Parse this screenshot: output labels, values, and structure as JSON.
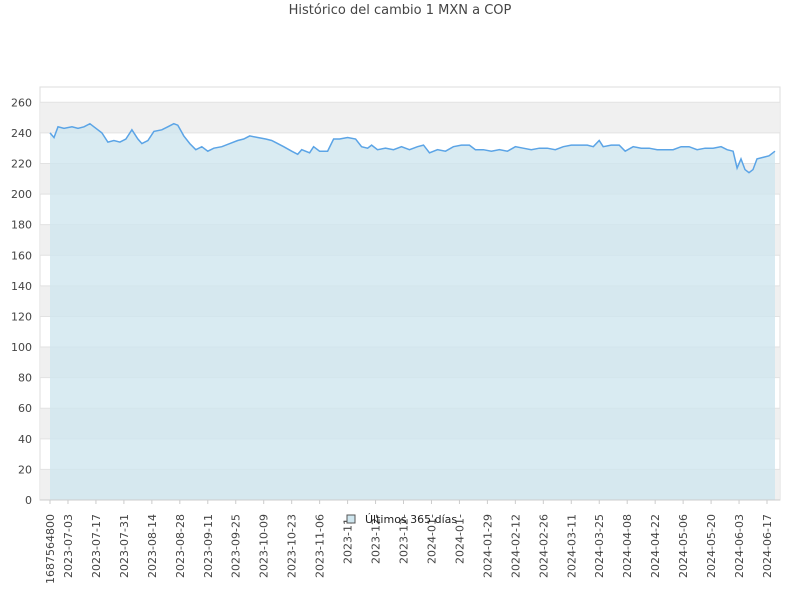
{
  "title": "Histórico del cambio 1 MXN a COP",
  "chart_data": {
    "type": "area",
    "title": "Histórico del cambio 1 MXN a COP",
    "xlabel": "",
    "ylabel": "",
    "ylim": [
      0,
      270
    ],
    "yticks": [
      0,
      20,
      40,
      60,
      80,
      100,
      120,
      140,
      160,
      180,
      200,
      220,
      240,
      260
    ],
    "grid": true,
    "legend_position": "bottom-center",
    "line_color": "#5ba4e6",
    "fill_color": "#cfe6ef",
    "x_tick_labels": [
      "1687564800",
      "2023-07-03",
      "2023-07-17",
      "2023-07-31",
      "2023-08-14",
      "2023-08-28",
      "2023-09-11",
      "2023-09-25",
      "2023-10-09",
      "2023-10-23",
      "2023-11-06",
      "2023-11-",
      "2023-12-",
      "2023-12-",
      "2024-01-",
      "2024-01-",
      "2024-01-29",
      "2024-02-12",
      "2024-02-26",
      "2024-03-11",
      "2024-03-25",
      "2024-04-08",
      "2024-04-22",
      "2024-05-06",
      "2024-05-20",
      "2024-06-03",
      "2024-06-17"
    ],
    "x_tick_dates": [
      "2023-06-24",
      "2023-07-03",
      "2023-07-17",
      "2023-07-31",
      "2023-08-14",
      "2023-08-28",
      "2023-09-11",
      "2023-09-25",
      "2023-10-09",
      "2023-10-23",
      "2023-11-06",
      "2023-11-20",
      "2023-12-04",
      "2023-12-18",
      "2024-01-01",
      "2024-01-15",
      "2024-01-29",
      "2024-02-12",
      "2024-02-26",
      "2024-03-11",
      "2024-03-25",
      "2024-04-08",
      "2024-04-22",
      "2024-05-06",
      "2024-05-20",
      "2024-06-03",
      "2024-06-17"
    ],
    "series": [
      {
        "name": "Últimos 365 días",
        "points": [
          [
            "2023-06-24",
            240
          ],
          [
            "2023-06-26",
            237
          ],
          [
            "2023-06-28",
            244
          ],
          [
            "2023-07-01",
            243
          ],
          [
            "2023-07-05",
            244
          ],
          [
            "2023-07-08",
            243
          ],
          [
            "2023-07-11",
            244
          ],
          [
            "2023-07-14",
            246
          ],
          [
            "2023-07-17",
            243
          ],
          [
            "2023-07-20",
            240
          ],
          [
            "2023-07-23",
            234
          ],
          [
            "2023-07-26",
            235
          ],
          [
            "2023-07-29",
            234
          ],
          [
            "2023-08-01",
            236
          ],
          [
            "2023-08-04",
            242
          ],
          [
            "2023-08-07",
            236
          ],
          [
            "2023-08-09",
            233
          ],
          [
            "2023-08-12",
            235
          ],
          [
            "2023-08-15",
            241
          ],
          [
            "2023-08-19",
            242
          ],
          [
            "2023-08-22",
            244
          ],
          [
            "2023-08-25",
            246
          ],
          [
            "2023-08-27",
            245
          ],
          [
            "2023-08-30",
            238
          ],
          [
            "2023-09-02",
            233
          ],
          [
            "2023-09-05",
            229
          ],
          [
            "2023-09-08",
            231
          ],
          [
            "2023-09-11",
            228
          ],
          [
            "2023-09-14",
            230
          ],
          [
            "2023-09-18",
            231
          ],
          [
            "2023-09-22",
            233
          ],
          [
            "2023-09-26",
            235
          ],
          [
            "2023-09-29",
            236
          ],
          [
            "2023-10-02",
            238
          ],
          [
            "2023-10-06",
            237
          ],
          [
            "2023-10-10",
            236
          ],
          [
            "2023-10-13",
            235
          ],
          [
            "2023-10-16",
            233
          ],
          [
            "2023-10-19",
            231
          ],
          [
            "2023-10-23",
            228
          ],
          [
            "2023-10-26",
            226
          ],
          [
            "2023-10-28",
            229
          ],
          [
            "2023-11-01",
            227
          ],
          [
            "2023-11-03",
            231
          ],
          [
            "2023-11-06",
            228
          ],
          [
            "2023-11-10",
            228
          ],
          [
            "2023-11-13",
            236
          ],
          [
            "2023-11-16",
            236
          ],
          [
            "2023-11-20",
            237
          ],
          [
            "2023-11-24",
            236
          ],
          [
            "2023-11-27",
            231
          ],
          [
            "2023-11-30",
            230
          ],
          [
            "2023-12-02",
            232
          ],
          [
            "2023-12-05",
            229
          ],
          [
            "2023-12-09",
            230
          ],
          [
            "2023-12-13",
            229
          ],
          [
            "2023-12-17",
            231
          ],
          [
            "2023-12-21",
            229
          ],
          [
            "2023-12-25",
            231
          ],
          [
            "2023-12-28",
            232
          ],
          [
            "2023-12-31",
            227
          ],
          [
            "2024-01-04",
            229
          ],
          [
            "2024-01-08",
            228
          ],
          [
            "2024-01-12",
            231
          ],
          [
            "2024-01-16",
            232
          ],
          [
            "2024-01-20",
            232
          ],
          [
            "2024-01-23",
            229
          ],
          [
            "2024-01-27",
            229
          ],
          [
            "2024-01-31",
            228
          ],
          [
            "2024-02-04",
            229
          ],
          [
            "2024-02-08",
            228
          ],
          [
            "2024-02-12",
            231
          ],
          [
            "2024-02-16",
            230
          ],
          [
            "2024-02-20",
            229
          ],
          [
            "2024-02-24",
            230
          ],
          [
            "2024-02-28",
            230
          ],
          [
            "2024-03-03",
            229
          ],
          [
            "2024-03-07",
            231
          ],
          [
            "2024-03-11",
            232
          ],
          [
            "2024-03-15",
            232
          ],
          [
            "2024-03-19",
            232
          ],
          [
            "2024-03-22",
            231
          ],
          [
            "2024-03-25",
            235
          ],
          [
            "2024-03-27",
            231
          ],
          [
            "2024-03-31",
            232
          ],
          [
            "2024-04-04",
            232
          ],
          [
            "2024-04-07",
            228
          ],
          [
            "2024-04-11",
            231
          ],
          [
            "2024-04-15",
            230
          ],
          [
            "2024-04-19",
            230
          ],
          [
            "2024-04-23",
            229
          ],
          [
            "2024-04-27",
            229
          ],
          [
            "2024-05-01",
            229
          ],
          [
            "2024-05-05",
            231
          ],
          [
            "2024-05-09",
            231
          ],
          [
            "2024-05-13",
            229
          ],
          [
            "2024-05-17",
            230
          ],
          [
            "2024-05-21",
            230
          ],
          [
            "2024-05-25",
            231
          ],
          [
            "2024-05-28",
            229
          ],
          [
            "2024-05-31",
            228
          ],
          [
            "2024-06-02",
            217
          ],
          [
            "2024-06-04",
            223
          ],
          [
            "2024-06-06",
            216
          ],
          [
            "2024-06-08",
            214
          ],
          [
            "2024-06-10",
            216
          ],
          [
            "2024-06-12",
            223
          ],
          [
            "2024-06-15",
            224
          ],
          [
            "2024-06-18",
            225
          ],
          [
            "2024-06-21",
            228
          ]
        ]
      }
    ]
  }
}
